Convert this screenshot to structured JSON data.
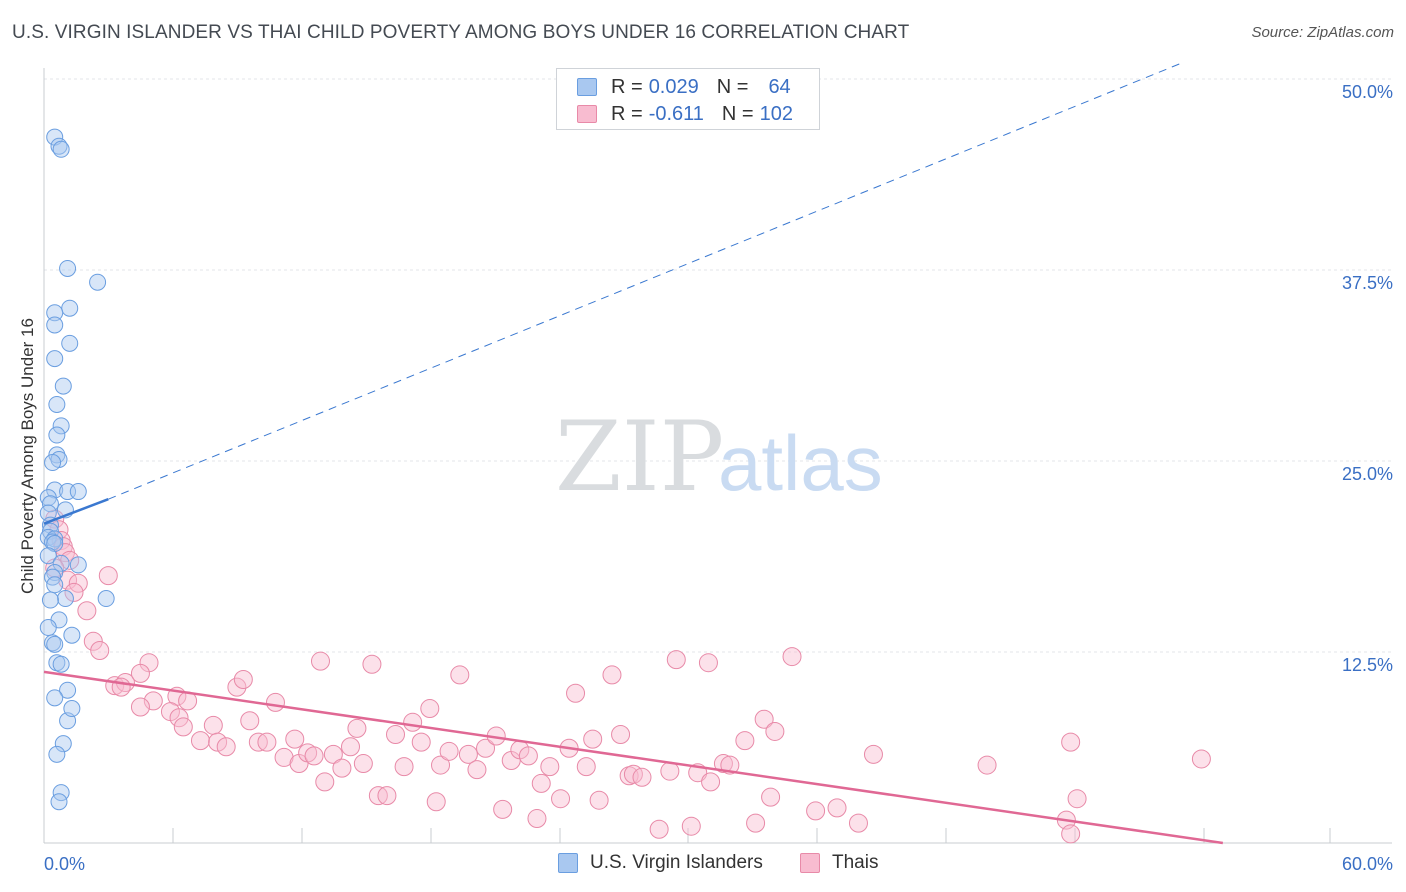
{
  "title": "U.S. VIRGIN ISLANDER VS THAI CHILD POVERTY AMONG BOYS UNDER 16 CORRELATION CHART",
  "source": "Source: ZipAtlas.com",
  "watermark": {
    "zip": "ZIP",
    "atlas": "atlas"
  },
  "legend": {
    "rows": [
      {
        "r_label": "R = ",
        "r_value": "0.029",
        "n_label": "N = ",
        "n_value": "64",
        "color": "#a9c8f0",
        "border": "#6a9ee0"
      },
      {
        "r_label": "R = ",
        "r_value": "-0.611",
        "n_label": "N = ",
        "n_value": "102",
        "color": "#f8bcd0",
        "border": "#e88aa8"
      }
    ]
  },
  "bottom_legend": [
    {
      "label": "U.S. Virgin Islanders",
      "color": "#a9c8f0",
      "border": "#6a9ee0"
    },
    {
      "label": "Thais",
      "color": "#f8bcd0",
      "border": "#e88aa8"
    }
  ],
  "chart_data": {
    "type": "scatter",
    "ylabel": "Child Poverty Among Boys Under 16",
    "xlabel": "",
    "xlim": [
      0,
      60
    ],
    "ylim": [
      0,
      50
    ],
    "x_tick_labels": [
      "0.0%",
      "60.0%"
    ],
    "y_tick_labels": [
      "12.5%",
      "25.0%",
      "37.5%",
      "50.0%"
    ],
    "y_ticks": [
      12.5,
      25.0,
      37.5,
      50.0
    ],
    "colors": {
      "series1": "#6a9ee0",
      "series2": "#e88aa8",
      "line1": "#3a78d0",
      "line2": "#e06894"
    },
    "series": [
      {
        "name": "U.S. Virgin Islanders",
        "trend": {
          "x0": 0,
          "y0": 20.9,
          "x1": 3.0,
          "y1": 22.5,
          "dashed_to_x": 53,
          "dashed_to_y": 51.0
        },
        "points": [
          [
            0.5,
            46.2
          ],
          [
            0.7,
            45.6
          ],
          [
            0.8,
            45.4
          ],
          [
            1.1,
            37.6
          ],
          [
            2.5,
            36.7
          ],
          [
            1.2,
            35.0
          ],
          [
            0.5,
            34.7
          ],
          [
            0.5,
            33.9
          ],
          [
            1.2,
            32.7
          ],
          [
            0.5,
            31.7
          ],
          [
            0.9,
            29.9
          ],
          [
            0.6,
            28.7
          ],
          [
            0.8,
            27.3
          ],
          [
            0.6,
            26.7
          ],
          [
            0.6,
            25.4
          ],
          [
            0.7,
            25.1
          ],
          [
            0.4,
            24.9
          ],
          [
            0.5,
            23.1
          ],
          [
            1.1,
            23.0
          ],
          [
            1.6,
            23.0
          ],
          [
            0.2,
            22.6
          ],
          [
            0.3,
            22.2
          ],
          [
            1.0,
            21.8
          ],
          [
            0.2,
            21.6
          ],
          [
            0.3,
            20.8
          ],
          [
            0.3,
            20.4
          ],
          [
            0.2,
            20.0
          ],
          [
            0.5,
            19.9
          ],
          [
            0.4,
            19.7
          ],
          [
            0.5,
            19.6
          ],
          [
            0.2,
            18.8
          ],
          [
            0.8,
            18.3
          ],
          [
            1.6,
            18.2
          ],
          [
            0.5,
            17.7
          ],
          [
            0.4,
            17.4
          ],
          [
            0.5,
            16.9
          ],
          [
            1.0,
            16.0
          ],
          [
            2.9,
            16.0
          ],
          [
            0.3,
            15.9
          ],
          [
            0.7,
            14.6
          ],
          [
            0.2,
            14.1
          ],
          [
            1.3,
            13.6
          ],
          [
            0.4,
            13.1
          ],
          [
            0.5,
            13.0
          ],
          [
            0.6,
            11.8
          ],
          [
            0.8,
            11.7
          ],
          [
            1.1,
            10.0
          ],
          [
            0.5,
            9.5
          ],
          [
            1.1,
            8.0
          ],
          [
            1.3,
            8.8
          ],
          [
            0.9,
            6.5
          ],
          [
            0.6,
            5.8
          ],
          [
            0.8,
            3.3
          ],
          [
            0.7,
            2.7
          ]
        ]
      },
      {
        "name": "Thais",
        "trend": {
          "x0": 0,
          "y0": 11.2,
          "x1": 55,
          "y1": 0
        },
        "points": [
          [
            0.5,
            21.2
          ],
          [
            0.7,
            20.5
          ],
          [
            0.8,
            19.8
          ],
          [
            0.9,
            19.4
          ],
          [
            1.0,
            19.0
          ],
          [
            1.2,
            18.5
          ],
          [
            0.5,
            18.0
          ],
          [
            1.1,
            17.2
          ],
          [
            1.6,
            17.0
          ],
          [
            3.0,
            17.5
          ],
          [
            1.4,
            16.4
          ],
          [
            2.0,
            15.2
          ],
          [
            2.3,
            13.2
          ],
          [
            2.6,
            12.6
          ],
          [
            3.3,
            10.3
          ],
          [
            3.8,
            10.5
          ],
          [
            3.6,
            10.2
          ],
          [
            4.9,
            11.8
          ],
          [
            4.5,
            11.1
          ],
          [
            5.1,
            9.3
          ],
          [
            4.5,
            8.9
          ],
          [
            6.2,
            9.6
          ],
          [
            6.7,
            9.3
          ],
          [
            5.9,
            8.6
          ],
          [
            6.3,
            8.2
          ],
          [
            6.5,
            7.6
          ],
          [
            7.3,
            6.7
          ],
          [
            7.9,
            7.7
          ],
          [
            8.1,
            6.6
          ],
          [
            8.5,
            6.3
          ],
          [
            9.0,
            10.2
          ],
          [
            9.3,
            10.7
          ],
          [
            9.6,
            8.0
          ],
          [
            10.0,
            6.6
          ],
          [
            10.4,
            6.6
          ],
          [
            10.8,
            9.2
          ],
          [
            11.2,
            5.6
          ],
          [
            11.7,
            6.8
          ],
          [
            11.9,
            5.2
          ],
          [
            12.3,
            5.9
          ],
          [
            12.6,
            5.7
          ],
          [
            12.9,
            11.9
          ],
          [
            13.1,
            4.0
          ],
          [
            13.5,
            5.8
          ],
          [
            13.9,
            4.9
          ],
          [
            14.3,
            6.3
          ],
          [
            14.6,
            7.5
          ],
          [
            14.9,
            5.2
          ],
          [
            15.3,
            11.7
          ],
          [
            15.6,
            3.1
          ],
          [
            16.0,
            3.1
          ],
          [
            16.4,
            7.1
          ],
          [
            16.8,
            5.0
          ],
          [
            17.2,
            7.9
          ],
          [
            17.6,
            6.6
          ],
          [
            18.0,
            8.8
          ],
          [
            18.3,
            2.7
          ],
          [
            18.5,
            5.1
          ],
          [
            18.9,
            6.0
          ],
          [
            19.4,
            11.0
          ],
          [
            19.8,
            5.8
          ],
          [
            20.2,
            4.8
          ],
          [
            20.6,
            6.2
          ],
          [
            21.1,
            7.0
          ],
          [
            21.4,
            2.2
          ],
          [
            21.8,
            5.4
          ],
          [
            22.2,
            6.1
          ],
          [
            22.6,
            5.7
          ],
          [
            23.0,
            1.6
          ],
          [
            23.2,
            3.9
          ],
          [
            23.6,
            5.0
          ],
          [
            24.1,
            2.9
          ],
          [
            24.5,
            6.2
          ],
          [
            24.8,
            9.8
          ],
          [
            25.3,
            5.0
          ],
          [
            25.6,
            6.8
          ],
          [
            25.9,
            2.8
          ],
          [
            26.5,
            11.0
          ],
          [
            26.9,
            7.1
          ],
          [
            27.3,
            4.4
          ],
          [
            27.5,
            4.5
          ],
          [
            27.9,
            4.3
          ],
          [
            28.7,
            0.9
          ],
          [
            29.2,
            4.7
          ],
          [
            29.5,
            12.0
          ],
          [
            30.2,
            1.1
          ],
          [
            30.5,
            4.6
          ],
          [
            31.1,
            4.0
          ],
          [
            31.0,
            11.8
          ],
          [
            31.7,
            5.2
          ],
          [
            32.0,
            5.1
          ],
          [
            32.7,
            6.7
          ],
          [
            33.2,
            1.3
          ],
          [
            33.6,
            8.1
          ],
          [
            33.9,
            3.0
          ],
          [
            34.1,
            7.3
          ],
          [
            34.9,
            12.2
          ],
          [
            36.0,
            2.1
          ],
          [
            37.0,
            2.3
          ],
          [
            38.0,
            1.3
          ],
          [
            38.7,
            5.8
          ],
          [
            44.0,
            5.1
          ],
          [
            47.7,
            1.5
          ],
          [
            47.9,
            0.6
          ],
          [
            47.9,
            6.6
          ],
          [
            48.2,
            2.9
          ],
          [
            54.0,
            5.5
          ]
        ]
      }
    ]
  }
}
